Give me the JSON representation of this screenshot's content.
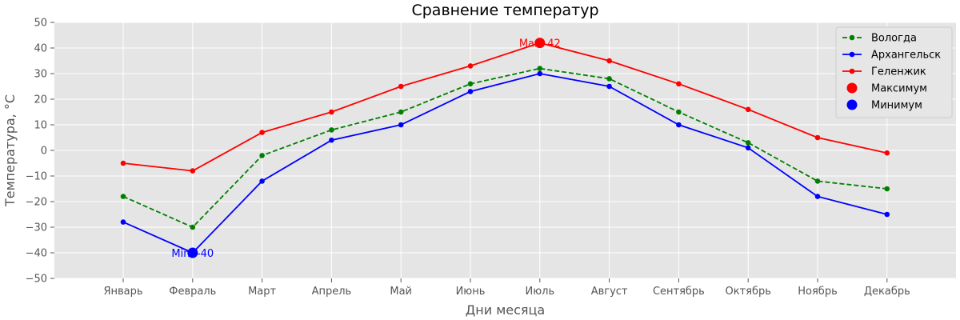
{
  "chart_data": {
    "type": "line",
    "title": "Сравнение температур",
    "xlabel": "Дни месяца",
    "ylabel": "Температура, °C",
    "categories": [
      "Январь",
      "Февраль",
      "Март",
      "Апрель",
      "Май",
      "Июнь",
      "Июль",
      "Август",
      "Сентябрь",
      "Октябрь",
      "Ноябрь",
      "Декабрь"
    ],
    "ylim": [
      -50,
      50
    ],
    "yticks": [
      -50,
      -40,
      -30,
      -20,
      -10,
      0,
      10,
      20,
      30,
      40,
      50
    ],
    "grid": true,
    "legend_position": "top-right",
    "series": [
      {
        "name": "Вологда",
        "color": "#008000",
        "style": "dashed",
        "values": [
          -18,
          -30,
          -2,
          8,
          15,
          26,
          32,
          28,
          15,
          3,
          -12,
          -15
        ]
      },
      {
        "name": "Архангельск",
        "color": "#0000ff",
        "style": "solid",
        "values": [
          -28,
          -40,
          -12,
          4,
          10,
          23,
          30,
          25,
          10,
          1,
          -18,
          -25
        ]
      },
      {
        "name": "Геленжик",
        "color": "#ff0000",
        "style": "solid",
        "values": [
          -5,
          -8,
          7,
          15,
          25,
          33,
          42,
          35,
          26,
          16,
          5,
          -1
        ]
      }
    ],
    "highlights": [
      {
        "name": "Максимум",
        "color": "#ff0000",
        "category": "Июль",
        "value": 42,
        "label": "Max: 42"
      },
      {
        "name": "Минимум",
        "color": "#0000ff",
        "category": "Февраль",
        "value": -40,
        "label": "Min: -40"
      }
    ]
  }
}
